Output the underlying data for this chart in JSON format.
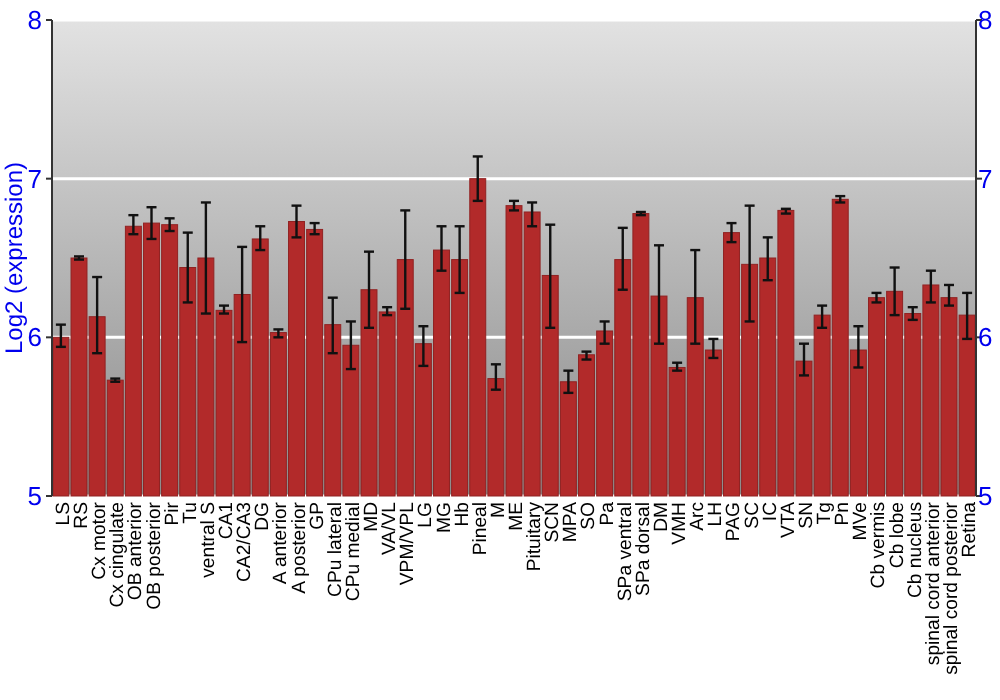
{
  "chart_data": {
    "type": "bar",
    "ylabel": "Log2 (expression)",
    "categories": [
      "LS",
      "RS",
      "Cx motor",
      "Cx cingulate",
      "OB anterior",
      "OB posterior",
      "Pir",
      "Tu",
      "ventral S",
      "CA1",
      "CA2/CA3",
      "DG",
      "A anterior",
      "A posterior",
      "GP",
      "CPu lateral",
      "CPu medial",
      "MD",
      "VA/VL",
      "VPM/VPL",
      "LG",
      "MG",
      "Hb",
      "Pineal",
      "M",
      "ME",
      "Pituitary",
      "SCN",
      "MPA",
      "SO",
      "Pa",
      "SPa ventral",
      "SPa dorsal",
      "DM",
      "VMH",
      "Arc",
      "LH",
      "PAG",
      "SC",
      "IC",
      "VTA",
      "SN",
      "Tg",
      "Pn",
      "MVe",
      "Cb vermis",
      "Cb lobe",
      "Cb nucleus",
      "spinal cord anterior",
      "spinal cord posterior",
      "Retina"
    ],
    "values": [
      6.0,
      6.5,
      6.13,
      5.73,
      6.7,
      6.72,
      6.71,
      6.44,
      6.5,
      6.17,
      6.27,
      6.62,
      6.03,
      6.73,
      6.68,
      6.08,
      5.95,
      6.3,
      6.16,
      6.49,
      5.96,
      6.55,
      6.49,
      7.0,
      5.74,
      6.83,
      6.79,
      6.39,
      5.72,
      5.89,
      6.04,
      6.49,
      6.78,
      6.26,
      5.81,
      6.25,
      5.92,
      6.66,
      6.46,
      6.5,
      6.8,
      5.85,
      6.14,
      6.87,
      5.92,
      6.25,
      6.29,
      6.15,
      6.33,
      6.25,
      6.14
    ],
    "errors": [
      [
        5.94,
        6.08
      ],
      [
        6.49,
        6.51
      ],
      [
        5.9,
        6.38
      ],
      [
        5.72,
        5.74
      ],
      [
        6.65,
        6.77
      ],
      [
        6.62,
        6.82
      ],
      [
        6.67,
        6.75
      ],
      [
        6.22,
        6.66
      ],
      [
        6.15,
        6.85
      ],
      [
        6.15,
        6.2
      ],
      [
        5.97,
        6.57
      ],
      [
        6.55,
        6.7
      ],
      [
        6.0,
        6.05
      ],
      [
        6.63,
        6.83
      ],
      [
        6.65,
        6.72
      ],
      [
        5.9,
        6.25
      ],
      [
        5.8,
        6.1
      ],
      [
        6.06,
        6.54
      ],
      [
        6.14,
        6.19
      ],
      [
        6.18,
        6.8
      ],
      [
        5.82,
        6.07
      ],
      [
        6.42,
        6.7
      ],
      [
        6.28,
        6.7
      ],
      [
        6.86,
        7.14
      ],
      [
        5.67,
        5.83
      ],
      [
        6.8,
        6.86
      ],
      [
        6.7,
        6.85
      ],
      [
        6.06,
        6.71
      ],
      [
        5.65,
        5.79
      ],
      [
        5.86,
        5.91
      ],
      [
        5.96,
        6.1
      ],
      [
        6.3,
        6.69
      ],
      [
        6.77,
        6.79
      ],
      [
        5.96,
        6.58
      ],
      [
        5.79,
        5.84
      ],
      [
        5.96,
        6.55
      ],
      [
        5.87,
        5.99
      ],
      [
        6.6,
        6.72
      ],
      [
        6.1,
        6.83
      ],
      [
        6.36,
        6.63
      ],
      [
        6.78,
        6.81
      ],
      [
        5.76,
        5.96
      ],
      [
        6.06,
        6.2
      ],
      [
        6.85,
        6.89
      ],
      [
        5.81,
        6.07
      ],
      [
        6.22,
        6.28
      ],
      [
        6.14,
        6.44
      ],
      [
        6.11,
        6.19
      ],
      [
        6.22,
        6.42
      ],
      [
        6.2,
        6.33
      ],
      [
        5.99,
        6.28
      ]
    ],
    "color": "#b22a2a",
    "ylim": [
      5,
      8
    ],
    "yticks": [
      5,
      6,
      7,
      8
    ],
    "y2lim": [
      5,
      8
    ],
    "y2ticks": [
      5,
      6,
      7,
      8
    ],
    "grid": "y"
  }
}
